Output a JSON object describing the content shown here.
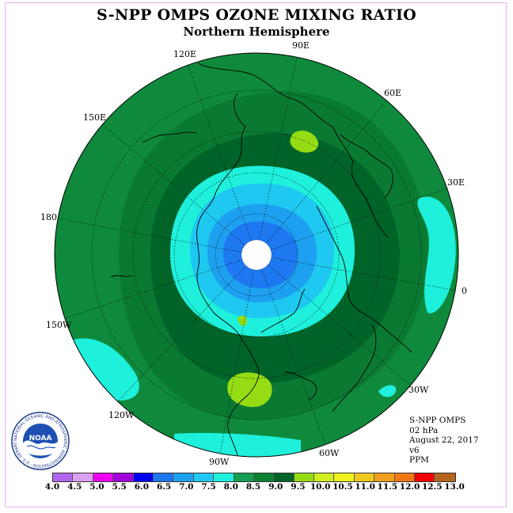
{
  "title": "S-NPP OMPS OZONE MIXING RATIO",
  "subtitle": "Northern Hemisphere",
  "longitude_labels": [
    "90E",
    "60E",
    "30E",
    "0",
    "30W",
    "60W",
    "90W",
    "120W",
    "150W",
    "180",
    "150E",
    "120E"
  ],
  "info": {
    "instrument": "S-NPP OMPS",
    "level": "02 hPa",
    "date": "August 22, 2017",
    "version": "v6",
    "units": "PPM"
  },
  "logo": {
    "text": "NOAA",
    "ring_text": "NATIONAL OCEANIC AND ATMOSPHERIC ADMINISTRATION · U.S. DEPARTMENT OF COMMERCE"
  },
  "colorbar": {
    "ticks": [
      "4.0",
      "4.5",
      "5.0",
      "5.5",
      "6.0",
      "6.5",
      "7.0",
      "7.5",
      "8.0",
      "8.5",
      "9.0",
      "9.5",
      "10.0",
      "10.5",
      "11.0",
      "11.5",
      "12.0",
      "12.5",
      "13.0"
    ],
    "colors": [
      "#b266f0",
      "#dca0f0",
      "#f000f0",
      "#a000dc",
      "#0000f0",
      "#1e78f0",
      "#1ea0f0",
      "#1ec8f0",
      "#1ef0dc",
      "#14a050",
      "#0a8232",
      "#006428",
      "#96dc14",
      "#d2f01e",
      "#f0f01e",
      "#f0c81e",
      "#f0a01e",
      "#f07814",
      "#f00000",
      "#b4641e"
    ]
  }
}
